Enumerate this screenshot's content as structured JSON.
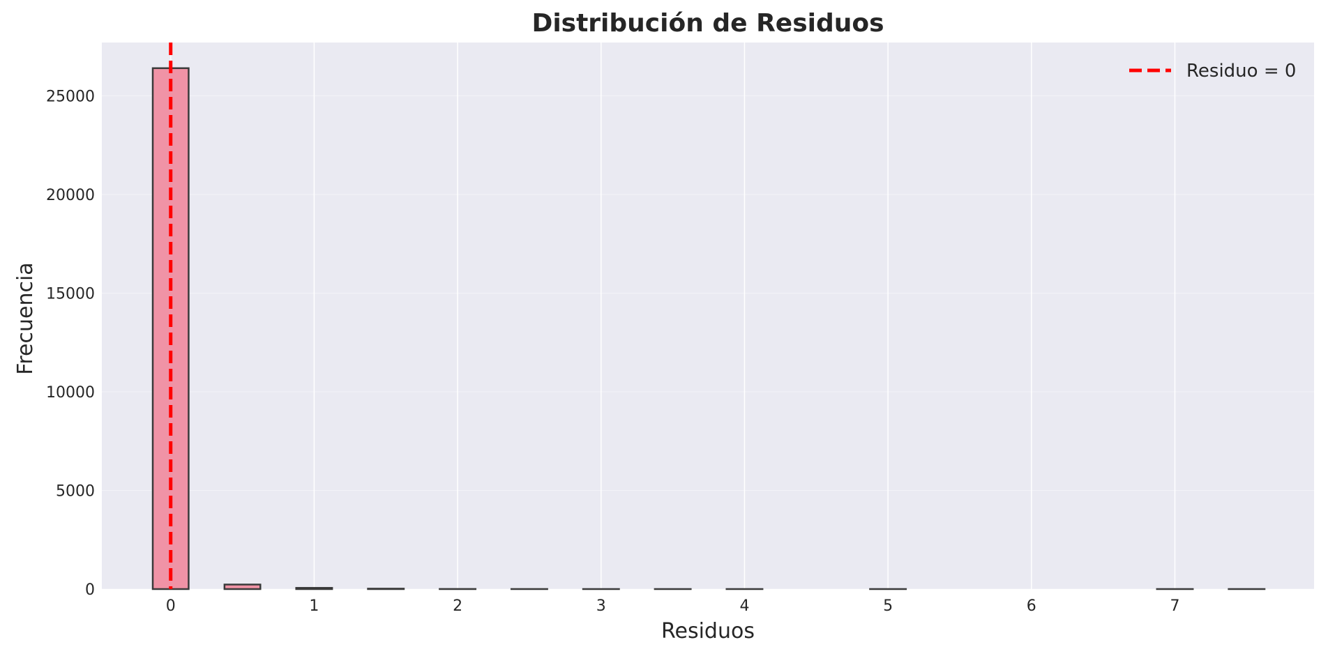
{
  "chart_data": {
    "type": "bar",
    "title": "Distribución de Residuos",
    "xlabel": "Residuos",
    "ylabel": "Frecuencia",
    "xlim": [
      -0.48,
      7.97
    ],
    "ylim": [
      0,
      27700
    ],
    "xticks": [
      0,
      1,
      2,
      3,
      4,
      5,
      6,
      7
    ],
    "yticks": [
      0,
      5000,
      10000,
      15000,
      20000,
      25000
    ],
    "bin_width": 0.25,
    "bins": [
      {
        "x0": -0.125,
        "x1": 0.125,
        "count": 26400
      },
      {
        "x0": 0.125,
        "x1": 0.375,
        "count": 0
      },
      {
        "x0": 0.375,
        "x1": 0.625,
        "count": 230
      },
      {
        "x0": 0.625,
        "x1": 0.875,
        "count": 0
      },
      {
        "x0": 0.875,
        "x1": 1.125,
        "count": 60
      },
      {
        "x0": 1.125,
        "x1": 1.375,
        "count": 0
      },
      {
        "x0": 1.375,
        "x1": 1.625,
        "count": 20
      },
      {
        "x0": 1.625,
        "x1": 1.875,
        "count": 0
      },
      {
        "x0": 1.875,
        "x1": 2.125,
        "count": 4
      },
      {
        "x0": 2.125,
        "x1": 2.375,
        "count": 0
      },
      {
        "x0": 2.375,
        "x1": 2.625,
        "count": 2
      },
      {
        "x0": 2.625,
        "x1": 2.875,
        "count": 0
      },
      {
        "x0": 2.875,
        "x1": 3.125,
        "count": 1
      },
      {
        "x0": 3.125,
        "x1": 3.375,
        "count": 0
      },
      {
        "x0": 3.375,
        "x1": 3.625,
        "count": 1
      },
      {
        "x0": 3.625,
        "x1": 3.875,
        "count": 0
      },
      {
        "x0": 3.875,
        "x1": 4.125,
        "count": 1
      },
      {
        "x0": 4.125,
        "x1": 4.375,
        "count": 0
      },
      {
        "x0": 4.375,
        "x1": 4.625,
        "count": 0
      },
      {
        "x0": 4.625,
        "x1": 4.875,
        "count": 0
      },
      {
        "x0": 4.875,
        "x1": 5.125,
        "count": 1
      },
      {
        "x0": 5.125,
        "x1": 5.375,
        "count": 0
      },
      {
        "x0": 5.375,
        "x1": 5.625,
        "count": 0
      },
      {
        "x0": 5.625,
        "x1": 5.875,
        "count": 0
      },
      {
        "x0": 5.875,
        "x1": 6.125,
        "count": 0
      },
      {
        "x0": 6.125,
        "x1": 6.375,
        "count": 0
      },
      {
        "x0": 6.375,
        "x1": 6.625,
        "count": 0
      },
      {
        "x0": 6.625,
        "x1": 6.875,
        "count": 0
      },
      {
        "x0": 6.875,
        "x1": 7.125,
        "count": 1
      },
      {
        "x0": 7.125,
        "x1": 7.375,
        "count": 0
      },
      {
        "x0": 7.375,
        "x1": 7.625,
        "count": 1
      }
    ],
    "reference_line": {
      "x": 0,
      "label": "Residuo = 0",
      "color": "#ff0000",
      "style": "dashed"
    },
    "legend": {
      "position": "top-right",
      "entries": [
        "Residuo = 0"
      ]
    },
    "grid": true,
    "colors": {
      "background": "#eaeaf2",
      "grid": "#ffffff",
      "bar_fill": "#f093a6",
      "bar_edge": "#3a3a3a",
      "reference_line": "#ff0000"
    }
  }
}
